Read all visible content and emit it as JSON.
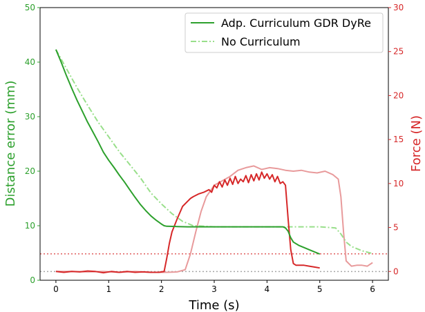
{
  "chart_data": {
    "type": "line",
    "xlabel": "Time (s)",
    "ylabel_left": "Distance error (mm)",
    "ylabel_right": "Force (N)",
    "xlim": [
      -0.3,
      6.3
    ],
    "ylim_left": [
      0,
      50
    ],
    "ylim_right": [
      -1,
      30
    ],
    "xticks": [
      "0",
      "1",
      "2",
      "3",
      "4",
      "5",
      "6"
    ],
    "yticks_left": [
      "0",
      "10",
      "20",
      "30",
      "40",
      "50"
    ],
    "yticks_right": [
      "0",
      "5",
      "10",
      "15",
      "20",
      "25",
      "30"
    ],
    "colors": {
      "curriculum": "#2ca02c",
      "no_curriculum": "#98df8a",
      "force": "#d62728",
      "force_faint": "#e89a9b",
      "left_axis": "#2ca02c",
      "right_axis": "#d62728"
    },
    "legend": {
      "placement": "top-right",
      "entries": [
        "Adp. Curriculum GDR DyRe",
        "No Curriculum"
      ]
    },
    "reference_lines": [
      {
        "axis": "right",
        "value": 2,
        "style": "dotted",
        "color": "#d62728"
      },
      {
        "axis": "left",
        "value": 1.6,
        "style": "dotted",
        "color": "#888888"
      }
    ],
    "series": [
      {
        "name": "Adp. Curriculum GDR DyRe",
        "axis": "left",
        "style": "solid",
        "color": "#2ca02c",
        "x": [
          0,
          0.1,
          0.2,
          0.3,
          0.4,
          0.5,
          0.6,
          0.7,
          0.8,
          0.9,
          1.0,
          1.1,
          1.2,
          1.3,
          1.4,
          1.5,
          1.6,
          1.7,
          1.8,
          1.9,
          2.0,
          2.05,
          2.1,
          2.3,
          2.5,
          3.0,
          3.5,
          4.0,
          4.3,
          4.35,
          4.4,
          4.45,
          4.5,
          4.6,
          4.7,
          4.8,
          4.9,
          5.0
        ],
        "y": [
          42.3,
          40.0,
          37.5,
          35.2,
          33.0,
          31.0,
          29.0,
          27.2,
          25.4,
          23.5,
          22.0,
          20.7,
          19.3,
          18.0,
          16.6,
          15.2,
          13.9,
          12.8,
          11.8,
          11.0,
          10.3,
          10.0,
          9.9,
          9.85,
          9.8,
          9.8,
          9.8,
          9.8,
          9.8,
          9.6,
          9.0,
          7.8,
          7.0,
          6.4,
          6.0,
          5.6,
          5.2,
          4.8
        ]
      },
      {
        "name": "No Curriculum",
        "axis": "left",
        "style": "dash-dot",
        "color": "#98df8a",
        "x": [
          0,
          0.2,
          0.4,
          0.6,
          0.8,
          1.0,
          1.2,
          1.4,
          1.6,
          1.8,
          2.0,
          2.2,
          2.4,
          2.6,
          2.8,
          3.0,
          3.5,
          4.0,
          4.5,
          5.0,
          5.3,
          5.4,
          5.5,
          5.6,
          5.8,
          6.0
        ],
        "y": [
          42.3,
          38.8,
          35.3,
          32.1,
          29.0,
          26.3,
          23.6,
          21.2,
          18.8,
          16.0,
          14.0,
          12.2,
          10.8,
          10.0,
          9.9,
          9.8,
          9.8,
          9.8,
          9.8,
          9.8,
          9.6,
          8.5,
          7.0,
          6.2,
          5.4,
          4.9
        ]
      },
      {
        "axis": "right",
        "style": "solid",
        "color": "#d62728",
        "x": [
          0,
          0.15,
          0.3,
          0.45,
          0.6,
          0.75,
          0.9,
          1.05,
          1.2,
          1.35,
          1.5,
          1.65,
          1.8,
          1.95,
          2.05,
          2.1,
          2.15,
          2.2,
          2.3,
          2.4,
          2.5,
          2.55,
          2.6,
          2.7,
          2.8,
          2.9,
          2.95,
          3.0,
          3.05,
          3.1,
          3.15,
          3.2,
          3.25,
          3.3,
          3.35,
          3.4,
          3.45,
          3.5,
          3.55,
          3.6,
          3.65,
          3.7,
          3.75,
          3.8,
          3.85,
          3.9,
          3.95,
          4.0,
          4.05,
          4.1,
          4.15,
          4.2,
          4.25,
          4.3,
          4.35,
          4.4,
          4.45,
          4.5,
          4.55,
          4.6,
          4.7,
          4.8,
          4.9,
          5.0
        ],
        "y": [
          0,
          -0.1,
          0,
          -0.05,
          0.05,
          0,
          -0.15,
          0,
          -0.1,
          0,
          -0.1,
          -0.05,
          -0.1,
          -0.1,
          0,
          1.5,
          3.2,
          4.5,
          6.0,
          7.4,
          8.0,
          8.3,
          8.5,
          8.8,
          9.0,
          9.3,
          9.0,
          9.8,
          9.5,
          10.2,
          9.6,
          10.4,
          9.8,
          10.6,
          9.9,
          10.8,
          10.0,
          10.5,
          10.2,
          10.9,
          10.1,
          11.0,
          10.3,
          11.1,
          10.4,
          11.3,
          10.6,
          11.1,
          10.5,
          11.0,
          10.2,
          10.8,
          10.0,
          10.2,
          9.8,
          6.0,
          2.5,
          0.9,
          0.7,
          0.7,
          0.7,
          0.6,
          0.5,
          0.4
        ]
      },
      {
        "axis": "right",
        "style": "solid",
        "color": "#e89a9b",
        "x": [
          0,
          0.3,
          0.6,
          0.9,
          1.2,
          1.5,
          1.8,
          2.1,
          2.3,
          2.45,
          2.55,
          2.65,
          2.75,
          2.85,
          3.0,
          3.15,
          3.3,
          3.45,
          3.6,
          3.75,
          3.9,
          4.05,
          4.2,
          4.35,
          4.5,
          4.65,
          4.8,
          4.95,
          5.1,
          5.25,
          5.35,
          5.4,
          5.45,
          5.5,
          5.6,
          5.7,
          5.8,
          5.9,
          6.0
        ],
        "y": [
          0,
          0,
          -0.05,
          0,
          -0.1,
          0,
          -0.1,
          -0.1,
          -0.05,
          0.2,
          2.0,
          4.5,
          6.8,
          8.5,
          9.8,
          10.3,
          10.8,
          11.5,
          11.8,
          12.0,
          11.6,
          11.8,
          11.7,
          11.5,
          11.4,
          11.5,
          11.3,
          11.2,
          11.4,
          11.0,
          10.5,
          8.5,
          4.5,
          1.2,
          0.6,
          0.7,
          0.7,
          0.6,
          1.0
        ]
      }
    ]
  }
}
